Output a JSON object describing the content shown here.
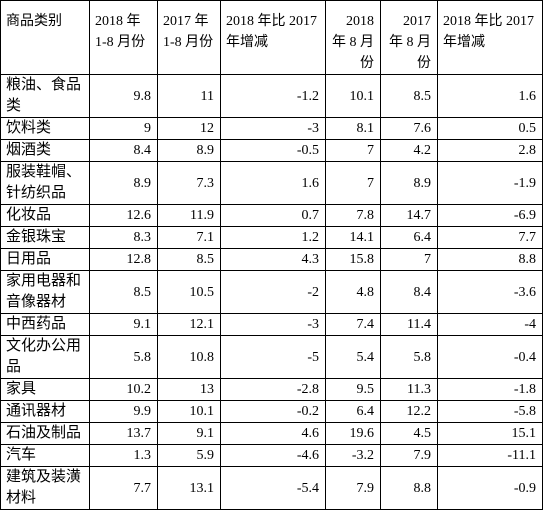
{
  "table": {
    "header": [
      "商品类别",
      "2018 年\n1-8 月份",
      "2017 年\n1-8 月份",
      "2018 年比 2017 年增减",
      "2018 年 8 月份",
      "2017 年 8 月份",
      "2018 年比 2017 年增减"
    ],
    "rows": [
      [
        "粮油、食品类",
        9.8,
        11,
        -1.2,
        10.1,
        8.5,
        1.6
      ],
      [
        "饮料类",
        9,
        12,
        -3,
        8.1,
        7.6,
        0.5
      ],
      [
        "烟酒类",
        8.4,
        8.9,
        -0.5,
        7,
        4.2,
        2.8
      ],
      [
        "服装鞋帽、针纺织品",
        8.9,
        7.3,
        1.6,
        7,
        8.9,
        -1.9
      ],
      [
        "化妆品",
        12.6,
        11.9,
        0.7,
        7.8,
        14.7,
        -6.9
      ],
      [
        "金银珠宝",
        8.3,
        7.1,
        1.2,
        14.1,
        6.4,
        7.7
      ],
      [
        "日用品",
        12.8,
        8.5,
        4.3,
        15.8,
        7,
        8.8
      ],
      [
        "家用电器和音像器材",
        8.5,
        10.5,
        -2,
        4.8,
        8.4,
        -3.6
      ],
      [
        "中西药品",
        9.1,
        12.1,
        -3,
        7.4,
        11.4,
        -4
      ],
      [
        "文化办公用品",
        5.8,
        10.8,
        -5,
        5.4,
        5.8,
        -0.4
      ],
      [
        "家具",
        10.2,
        13,
        -2.8,
        9.5,
        11.3,
        -1.8
      ],
      [
        "通讯器材",
        9.9,
        10.1,
        -0.2,
        6.4,
        12.2,
        -5.8
      ],
      [
        "石油及制品",
        13.7,
        9.1,
        4.6,
        19.6,
        4.5,
        15.1
      ],
      [
        "汽车",
        1.3,
        5.9,
        -4.6,
        -3.2,
        7.9,
        -11.1
      ],
      [
        "建筑及装潢材料",
        7.7,
        13.1,
        -5.4,
        7.9,
        8.8,
        -0.9
      ]
    ]
  }
}
